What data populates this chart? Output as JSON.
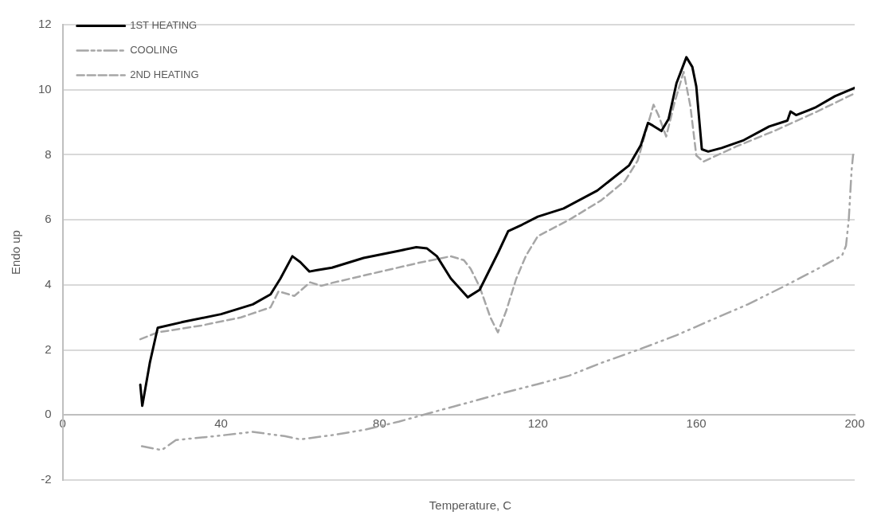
{
  "chart_data": {
    "type": "line",
    "xlabel": "Temperature,  C",
    "ylabel": "Endo up",
    "xlim": [
      0,
      200
    ],
    "xticks": [
      0,
      40,
      80,
      120,
      160,
      200
    ],
    "ylim": [
      -2,
      12
    ],
    "yticks": [
      -2,
      0,
      2,
      4,
      6,
      8,
      10,
      12
    ],
    "grid": "y",
    "legend": "top left",
    "marker": "none",
    "series": [
      {
        "name": "1ST HEATING",
        "color": "#000000",
        "line_style": "solid",
        "x": [
          19.6,
          20.1,
          22,
          24,
          30,
          40,
          48,
          52.5,
          55,
          58,
          60,
          62.3,
          64,
          68,
          76,
          85,
          89.3,
          92,
          94.5,
          98,
          102.3,
          105.3,
          110,
          112.5,
          116,
          120,
          126.5,
          135,
          143,
          146,
          147.8,
          149,
          151.2,
          153,
          155,
          157.5,
          159,
          160,
          161.4,
          163,
          166.4,
          172,
          178.4,
          183,
          183.8,
          185.2,
          190,
          195,
          200
        ],
        "values": [
          0.93,
          0.28,
          1.6,
          2.68,
          2.85,
          3.1,
          3.4,
          3.71,
          4.2,
          4.88,
          4.7,
          4.41,
          4.45,
          4.53,
          4.83,
          5.05,
          5.16,
          5.12,
          4.88,
          4.2,
          3.62,
          3.85,
          5.0,
          5.65,
          5.85,
          6.1,
          6.35,
          6.9,
          7.67,
          8.3,
          8.98,
          8.9,
          8.73,
          9.1,
          10.2,
          11.0,
          10.7,
          10.1,
          8.17,
          8.1,
          8.21,
          8.45,
          8.87,
          9.05,
          9.33,
          9.22,
          9.45,
          9.8,
          10.06
        ]
      },
      {
        "name": "COOLING",
        "color": "#a6a6a6",
        "line_style": "dotted",
        "x": [
          20,
          25,
          28.6,
          38.6,
          48,
          56,
          60,
          68,
          76,
          85,
          94.5,
          103,
          111.3,
          120,
          127.9,
          136,
          145.9,
          155,
          163.8,
          173,
          182.4,
          190,
          196.8,
          197.8,
          198.5,
          199.2,
          199.6
        ],
        "values": [
          -0.96,
          -1.08,
          -0.77,
          -0.65,
          -0.52,
          -0.65,
          -0.75,
          -0.62,
          -0.46,
          -0.2,
          0.12,
          0.4,
          0.68,
          0.95,
          1.21,
          1.6,
          2.03,
          2.45,
          2.92,
          3.4,
          3.97,
          4.45,
          4.9,
          5.2,
          6.0,
          7.5,
          8.0
        ]
      },
      {
        "name": "2ND HEATING",
        "color": "#a6a6a6",
        "line_style": "dashed",
        "x": [
          19.6,
          24,
          35,
          45,
          52.5,
          54.5,
          58.5,
          62.5,
          65.3,
          68,
          80,
          90,
          98,
          101.3,
          103,
          105.3,
          108,
          109.9,
          112,
          114.5,
          117,
          120,
          127.9,
          136,
          142,
          145.2,
          147,
          149.2,
          150.5,
          152.4,
          154.5,
          156.8,
          158.5,
          160,
          161.8,
          170,
          180,
          190,
          200
        ],
        "values": [
          2.33,
          2.54,
          2.75,
          3.0,
          3.31,
          3.8,
          3.66,
          4.08,
          3.97,
          4.06,
          4.4,
          4.68,
          4.88,
          4.76,
          4.5,
          3.94,
          3.0,
          2.54,
          3.2,
          4.18,
          4.9,
          5.5,
          6.0,
          6.6,
          7.2,
          7.82,
          8.6,
          9.54,
          9.2,
          8.56,
          9.6,
          10.55,
          9.5,
          7.98,
          7.79,
          8.25,
          8.75,
          9.3,
          9.89
        ]
      }
    ]
  }
}
